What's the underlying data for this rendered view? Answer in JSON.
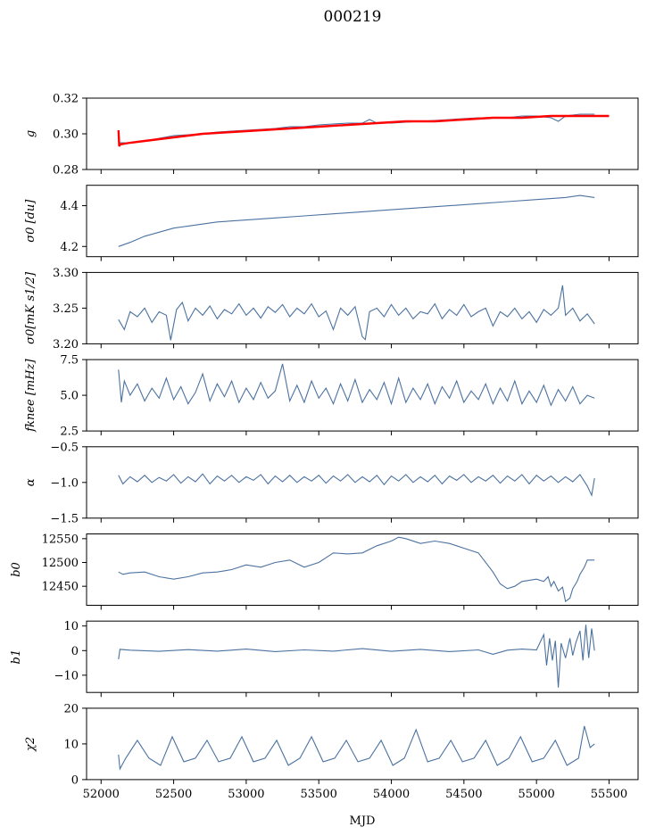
{
  "figure": {
    "title": "000219",
    "xlabel": "MJD"
  },
  "colors": {
    "series": "#4c72a0",
    "fit": "#ff0000",
    "axes": "#000000"
  },
  "chart_data": [
    {
      "type": "line",
      "ylabel": "g",
      "ylim": [
        0.28,
        0.32
      ],
      "yticks": [
        0.28,
        0.3,
        0.32
      ],
      "ytick_labels": [
        "0.28",
        "0.30",
        "0.32"
      ],
      "xlim": [
        51900,
        55700
      ],
      "series": [
        {
          "x": [
            52120,
            52125,
            52130,
            52200,
            52300,
            52500,
            52700,
            52800,
            53000,
            53200,
            53300,
            53400,
            53500,
            53700,
            53800,
            53850,
            53900,
            54000,
            54200,
            54400,
            54600,
            54800,
            54900,
            55000,
            55100,
            55150,
            55200,
            55300,
            55350,
            55400
          ],
          "y": [
            0.296,
            0.293,
            0.295,
            0.295,
            0.296,
            0.299,
            0.3,
            0.301,
            0.302,
            0.303,
            0.304,
            0.304,
            0.305,
            0.306,
            0.306,
            0.308,
            0.306,
            0.306,
            0.307,
            0.308,
            0.309,
            0.309,
            0.31,
            0.31,
            0.309,
            0.307,
            0.31,
            0.311,
            0.311,
            0.311
          ]
        },
        {
          "x": [
            52120,
            52125,
            52130,
            52200,
            52300,
            52500,
            52700,
            52900,
            53100,
            53300,
            53500,
            53700,
            53900,
            54100,
            54300,
            54500,
            54700,
            54900,
            55100,
            55300,
            55500
          ],
          "y": [
            0.302,
            0.293,
            0.294,
            0.295,
            0.296,
            0.298,
            0.3,
            0.301,
            0.302,
            0.303,
            0.304,
            0.305,
            0.306,
            0.307,
            0.307,
            0.308,
            0.309,
            0.309,
            0.31,
            0.31,
            0.31
          ]
        }
      ]
    },
    {
      "type": "line",
      "ylabel": "σ0 [du]",
      "ylim": [
        4.15,
        4.5
      ],
      "yticks": [
        4.2,
        4.4
      ],
      "ytick_labels": [
        "4.2",
        "4.4"
      ],
      "xlim": [
        51900,
        55700
      ],
      "series": [
        {
          "x": [
            52120,
            52200,
            52300,
            52400,
            52500,
            52600,
            52800,
            53000,
            53200,
            53400,
            53600,
            53800,
            54000,
            54200,
            54400,
            54600,
            54800,
            55000,
            55200,
            55300,
            55400
          ],
          "y": [
            4.2,
            4.22,
            4.25,
            4.27,
            4.29,
            4.3,
            4.32,
            4.33,
            4.34,
            4.35,
            4.36,
            4.37,
            4.38,
            4.39,
            4.4,
            4.41,
            4.42,
            4.43,
            4.44,
            4.45,
            4.44
          ]
        }
      ]
    },
    {
      "type": "line",
      "ylabel": "σ0[mK s1/2]",
      "ylim": [
        3.2,
        3.3
      ],
      "yticks": [
        3.2,
        3.25,
        3.3
      ],
      "ytick_labels": [
        "3.20",
        "3.25",
        "3.30"
      ],
      "xlim": [
        51900,
        55700
      ],
      "series": [
        {
          "x": [
            52120,
            52160,
            52200,
            52250,
            52300,
            52350,
            52400,
            52450,
            52480,
            52520,
            52560,
            52600,
            52650,
            52700,
            52750,
            52800,
            52850,
            52900,
            52950,
            53000,
            53050,
            53100,
            53150,
            53200,
            53250,
            53300,
            53350,
            53400,
            53450,
            53500,
            53550,
            53600,
            53650,
            53700,
            53750,
            53800,
            53820,
            53850,
            53900,
            53950,
            54000,
            54050,
            54100,
            54150,
            54200,
            54250,
            54300,
            54350,
            54400,
            54450,
            54500,
            54550,
            54600,
            54650,
            54700,
            54750,
            54800,
            54850,
            54900,
            54950,
            55000,
            55050,
            55100,
            55150,
            55180,
            55200,
            55250,
            55300,
            55350,
            55400
          ],
          "y": [
            3.234,
            3.22,
            3.245,
            3.238,
            3.25,
            3.23,
            3.245,
            3.24,
            3.205,
            3.248,
            3.258,
            3.232,
            3.25,
            3.24,
            3.253,
            3.235,
            3.248,
            3.242,
            3.256,
            3.24,
            3.25,
            3.236,
            3.252,
            3.244,
            3.255,
            3.238,
            3.25,
            3.242,
            3.256,
            3.238,
            3.246,
            3.22,
            3.25,
            3.24,
            3.252,
            3.21,
            3.206,
            3.245,
            3.25,
            3.238,
            3.255,
            3.24,
            3.25,
            3.235,
            3.245,
            3.242,
            3.256,
            3.235,
            3.248,
            3.24,
            3.255,
            3.238,
            3.245,
            3.25,
            3.225,
            3.245,
            3.238,
            3.25,
            3.235,
            3.245,
            3.23,
            3.248,
            3.24,
            3.25,
            3.282,
            3.24,
            3.25,
            3.232,
            3.242,
            3.228
          ]
        }
      ]
    },
    {
      "type": "line",
      "ylabel": "fknee [mHz]",
      "ylim": [
        2.5,
        7.5
      ],
      "yticks": [
        2.5,
        5.0,
        7.5
      ],
      "ytick_labels": [
        "2.5",
        "5.0",
        "7.5"
      ],
      "xlim": [
        51900,
        55700
      ],
      "series": [
        {
          "x": [
            52120,
            52140,
            52160,
            52200,
            52250,
            52300,
            52350,
            52400,
            52450,
            52500,
            52550,
            52600,
            52650,
            52700,
            52750,
            52800,
            52850,
            52900,
            52950,
            53000,
            53050,
            53100,
            53150,
            53200,
            53250,
            53300,
            53350,
            53400,
            53450,
            53500,
            53550,
            53600,
            53650,
            53700,
            53750,
            53800,
            53850,
            53900,
            53950,
            54000,
            54050,
            54100,
            54150,
            54200,
            54250,
            54300,
            54350,
            54400,
            54450,
            54500,
            54550,
            54600,
            54650,
            54700,
            54750,
            54800,
            54850,
            54900,
            54950,
            55000,
            55050,
            55100,
            55150,
            55200,
            55250,
            55300,
            55350,
            55400
          ],
          "y": [
            6.8,
            4.5,
            6.0,
            5.0,
            5.8,
            4.6,
            5.5,
            4.8,
            6.2,
            4.7,
            5.6,
            4.4,
            5.2,
            6.5,
            4.6,
            5.8,
            4.9,
            6.0,
            4.5,
            5.5,
            4.7,
            5.9,
            4.8,
            5.3,
            7.2,
            4.6,
            5.7,
            4.5,
            6.0,
            4.8,
            5.5,
            4.4,
            5.8,
            4.6,
            6.1,
            4.5,
            5.4,
            4.7,
            5.9,
            4.4,
            6.2,
            4.5,
            5.5,
            4.7,
            5.8,
            4.4,
            5.6,
            4.8,
            6.0,
            4.5,
            5.3,
            4.7,
            5.8,
            4.4,
            5.5,
            4.6,
            6.0,
            4.4,
            5.3,
            4.5,
            5.7,
            4.3,
            5.4,
            4.6,
            5.6,
            4.4,
            5.0,
            4.8
          ]
        }
      ]
    },
    {
      "type": "line",
      "ylabel": "α",
      "ylim": [
        -1.5,
        -0.5
      ],
      "yticks": [
        -1.5,
        -1.0,
        -0.5
      ],
      "ytick_labels": [
        "−1.5",
        "−1.0",
        "−0.5"
      ],
      "xlim": [
        51900,
        55700
      ],
      "series": [
        {
          "x": [
            52120,
            52150,
            52200,
            52250,
            52300,
            52350,
            52400,
            52450,
            52500,
            52550,
            52600,
            52650,
            52700,
            52750,
            52800,
            52850,
            52900,
            52950,
            53000,
            53050,
            53100,
            53150,
            53200,
            53250,
            53300,
            53350,
            53400,
            53450,
            53500,
            53550,
            53600,
            53650,
            53700,
            53750,
            53800,
            53850,
            53900,
            53950,
            54000,
            54050,
            54100,
            54150,
            54200,
            54250,
            54300,
            54350,
            54400,
            54450,
            54500,
            54550,
            54600,
            54650,
            54700,
            54750,
            54800,
            54850,
            54900,
            54950,
            55000,
            55050,
            55100,
            55150,
            55200,
            55250,
            55300,
            55350,
            55380,
            55400
          ],
          "y": [
            -0.9,
            -1.02,
            -0.92,
            -0.99,
            -0.9,
            -1.0,
            -0.93,
            -0.98,
            -0.89,
            -1.01,
            -0.92,
            -0.99,
            -0.88,
            -1.02,
            -0.91,
            -0.98,
            -0.9,
            -1.0,
            -0.92,
            -0.97,
            -0.89,
            -1.02,
            -0.91,
            -0.99,
            -0.9,
            -1.0,
            -0.92,
            -0.98,
            -0.9,
            -1.01,
            -0.91,
            -0.98,
            -0.89,
            -1.0,
            -0.92,
            -0.99,
            -0.9,
            -1.03,
            -0.91,
            -0.98,
            -0.89,
            -1.0,
            -0.92,
            -0.99,
            -0.9,
            -1.02,
            -0.91,
            -0.97,
            -0.89,
            -1.0,
            -0.92,
            -0.98,
            -0.9,
            -1.01,
            -0.91,
            -0.98,
            -0.89,
            -1.02,
            -0.9,
            -0.98,
            -0.91,
            -1.0,
            -0.92,
            -0.99,
            -0.89,
            -1.05,
            -1.18,
            -0.94
          ]
        }
      ]
    },
    {
      "type": "line",
      "ylabel": "b0",
      "ylim": [
        12410,
        12560
      ],
      "yticks": [
        12450,
        12500,
        12550
      ],
      "ytick_labels": [
        "12450",
        "12500",
        "12550"
      ],
      "xlim": [
        51900,
        55700
      ],
      "series": [
        {
          "x": [
            52120,
            52150,
            52200,
            52300,
            52400,
            52500,
            52600,
            52700,
            52800,
            52900,
            53000,
            53100,
            53200,
            53300,
            53400,
            53500,
            53550,
            53600,
            53700,
            53800,
            53900,
            54000,
            54050,
            54100,
            54200,
            54300,
            54400,
            54500,
            54600,
            54700,
            54750,
            54800,
            54850,
            54900,
            55000,
            55050,
            55080,
            55100,
            55120,
            55150,
            55180,
            55200,
            55230,
            55250,
            55280,
            55300,
            55330,
            55350,
            55400
          ],
          "y": [
            12480,
            12475,
            12478,
            12480,
            12470,
            12465,
            12470,
            12478,
            12480,
            12485,
            12495,
            12490,
            12500,
            12505,
            12490,
            12500,
            12510,
            12520,
            12518,
            12520,
            12535,
            12545,
            12553,
            12550,
            12540,
            12545,
            12540,
            12530,
            12520,
            12480,
            12455,
            12445,
            12450,
            12460,
            12465,
            12460,
            12470,
            12450,
            12460,
            12440,
            12448,
            12418,
            12425,
            12445,
            12460,
            12475,
            12490,
            12505,
            12505
          ]
        }
      ]
    },
    {
      "type": "line",
      "ylabel": "b1",
      "ylim": [
        -17,
        12
      ],
      "yticks": [
        -10,
        0,
        10
      ],
      "ytick_labels": [
        "−10",
        "0",
        "10"
      ],
      "xlim": [
        51900,
        55700
      ],
      "series": [
        {
          "x": [
            52120,
            52130,
            52200,
            52400,
            52600,
            52800,
            53000,
            53200,
            53400,
            53600,
            53800,
            54000,
            54200,
            54400,
            54600,
            54700,
            54800,
            54900,
            55000,
            55050,
            55070,
            55090,
            55110,
            55130,
            55150,
            55170,
            55200,
            55230,
            55250,
            55270,
            55300,
            55320,
            55340,
            55360,
            55380,
            55400
          ],
          "y": [
            -3.5,
            0.5,
            0.2,
            -0.3,
            0.4,
            -0.2,
            0.6,
            -0.4,
            0.3,
            -0.2,
            0.8,
            -0.3,
            0.5,
            -0.4,
            0.3,
            -1.5,
            0.2,
            0.6,
            0.3,
            6.5,
            -6.0,
            5.0,
            -4.0,
            4.0,
            -15.0,
            3.0,
            -3.0,
            5.0,
            -2.0,
            3.0,
            8.0,
            -4.0,
            10.5,
            -3.0,
            9.0,
            0.0
          ]
        }
      ]
    },
    {
      "type": "line",
      "ylabel": "χ2",
      "ylim": [
        0,
        20
      ],
      "yticks": [
        0,
        10,
        20
      ],
      "ytick_labels": [
        "0",
        "10",
        "20"
      ],
      "xticks": [
        52000,
        52500,
        53000,
        53500,
        54000,
        54500,
        55000,
        55500
      ],
      "xtick_labels": [
        "52000",
        "52500",
        "53000",
        "53500",
        "54000",
        "54500",
        "55000",
        "55500"
      ],
      "xlim": [
        51900,
        55700
      ],
      "series": [
        {
          "x": [
            52120,
            52130,
            52170,
            52250,
            52330,
            52410,
            52490,
            52570,
            52650,
            52730,
            52810,
            52890,
            52970,
            53050,
            53130,
            53210,
            53290,
            53370,
            53450,
            53530,
            53610,
            53690,
            53770,
            53850,
            53930,
            54010,
            54090,
            54170,
            54250,
            54330,
            54410,
            54490,
            54570,
            54650,
            54730,
            54810,
            54890,
            54970,
            55050,
            55130,
            55210,
            55290,
            55330,
            55370,
            55400
          ],
          "y": [
            7,
            3,
            6,
            11,
            6,
            4,
            12,
            5,
            6,
            11,
            5,
            6,
            12,
            5,
            6,
            11,
            4,
            6,
            12,
            5,
            6,
            11,
            5,
            6,
            11,
            4,
            6,
            14,
            5,
            6,
            11,
            5,
            6,
            11,
            4,
            6,
            12,
            5,
            6,
            11,
            4,
            6,
            15,
            9,
            10
          ]
        }
      ]
    }
  ]
}
